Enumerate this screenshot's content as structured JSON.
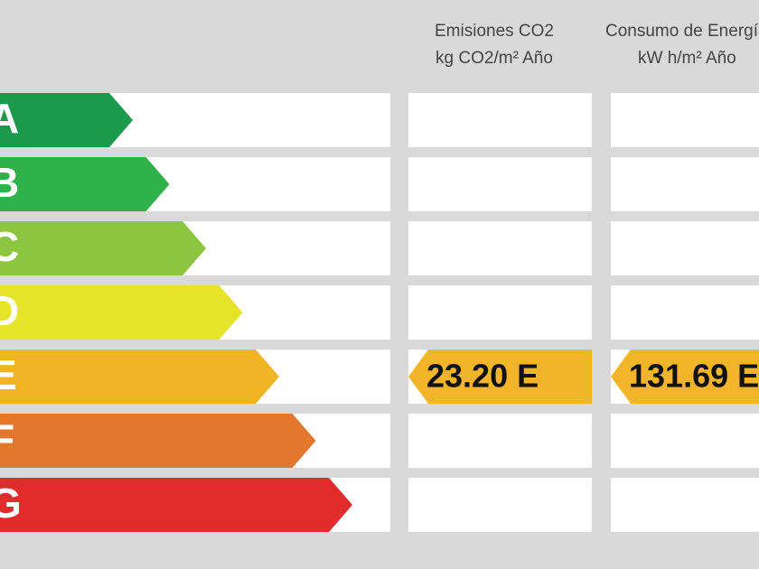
{
  "headers": [
    {
      "title": "Emisiones CO2",
      "unit": "kg CO2/m² Año"
    },
    {
      "title": "Consumo de Energía",
      "unit": "kW h/m² Año"
    }
  ],
  "ratings": [
    {
      "label": "A",
      "color": "#1b9a4b"
    },
    {
      "label": "B",
      "color": "#2fb24a"
    },
    {
      "label": "C",
      "color": "#8cc540"
    },
    {
      "label": "D",
      "color": "#e6e328"
    },
    {
      "label": "E",
      "color": "#f0b425"
    },
    {
      "label": "F",
      "color": "#e3782c"
    },
    {
      "label": "G",
      "color": "#e22b2b"
    }
  ],
  "indicators": [
    {
      "row": 4,
      "text": "23.20 E",
      "color": "#f2b52a"
    },
    {
      "row": 4,
      "text": "131.69 E",
      "color": "#f2b52a"
    }
  ]
}
